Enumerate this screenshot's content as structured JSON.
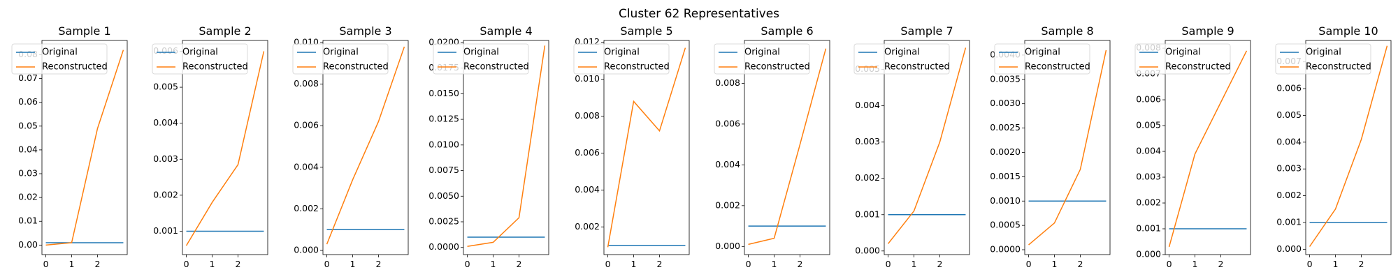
{
  "figure": {
    "title": "Cluster 62 Representatives"
  },
  "colors": {
    "original": "#1f77b4",
    "reconstructed": "#ff7f0e"
  },
  "chart_data": [
    {
      "type": "line",
      "title": "Sample 1",
      "x": [
        0,
        1,
        2,
        3
      ],
      "xticks": [
        "0",
        "1",
        "2"
      ],
      "ylim": [
        -0.004,
        0.086
      ],
      "yticks": [
        "0.00",
        "0.01",
        "0.02",
        "0.03",
        "0.04",
        "0.05",
        "0.06",
        "0.07",
        "0.08"
      ],
      "ytick_values": [
        0,
        0.01,
        0.02,
        0.03,
        0.04,
        0.05,
        0.06,
        0.07,
        0.08
      ],
      "series": [
        {
          "name": "Original",
          "values": [
            0.001,
            0.001,
            0.001,
            0.001
          ]
        },
        {
          "name": "Reconstructed",
          "values": [
            0.0,
            0.001,
            0.049,
            0.082
          ]
        }
      ],
      "legend": "upper left"
    },
    {
      "type": "line",
      "title": "Sample 2",
      "x": [
        0,
        1,
        2,
        3
      ],
      "xticks": [
        "0",
        "1",
        "2"
      ],
      "ylim": [
        0.00035,
        0.0063
      ],
      "yticks": [
        "0.001",
        "0.002",
        "0.003",
        "0.004",
        "0.005",
        "0.006"
      ],
      "ytick_values": [
        0.001,
        0.002,
        0.003,
        0.004,
        0.005,
        0.006
      ],
      "series": [
        {
          "name": "Original",
          "values": [
            0.001,
            0.001,
            0.001,
            0.001
          ]
        },
        {
          "name": "Reconstructed",
          "values": [
            0.0006,
            0.0018,
            0.00285,
            0.006
          ]
        }
      ],
      "legend": "upper left"
    },
    {
      "type": "line",
      "title": "Sample 3",
      "x": [
        0,
        1,
        2,
        3
      ],
      "xticks": [
        "0",
        "1",
        "2"
      ],
      "ylim": [
        -0.0002,
        0.0101
      ],
      "yticks": [
        "0.000",
        "0.002",
        "0.004",
        "0.006",
        "0.008",
        "0.010"
      ],
      "ytick_values": [
        0,
        0.002,
        0.004,
        0.006,
        0.008,
        0.01
      ],
      "series": [
        {
          "name": "Original",
          "values": [
            0.001,
            0.001,
            0.001,
            0.001
          ]
        },
        {
          "name": "Reconstructed",
          "values": [
            0.0003,
            0.0034,
            0.0062,
            0.0098
          ]
        }
      ],
      "legend": "upper left"
    },
    {
      "type": "line",
      "title": "Sample 4",
      "x": [
        0,
        1,
        2,
        3
      ],
      "xticks": [
        "0",
        "1",
        "2"
      ],
      "ylim": [
        -0.0007,
        0.0202
      ],
      "yticks": [
        "0.0000",
        "0.0025",
        "0.0050",
        "0.0075",
        "0.0100",
        "0.0125",
        "0.0150",
        "0.0175",
        "0.0200"
      ],
      "ytick_values": [
        0,
        0.0025,
        0.005,
        0.0075,
        0.01,
        0.0125,
        0.015,
        0.0175,
        0.02
      ],
      "series": [
        {
          "name": "Original",
          "values": [
            0.001,
            0.001,
            0.001,
            0.001
          ]
        },
        {
          "name": "Reconstructed",
          "values": [
            0.0001,
            0.0005,
            0.0029,
            0.0197
          ]
        }
      ],
      "legend": "upper left"
    },
    {
      "type": "line",
      "title": "Sample 5",
      "x": [
        0,
        1,
        2,
        3
      ],
      "xticks": [
        "0",
        "1",
        "2"
      ],
      "ylim": [
        0.0005,
        0.0121
      ],
      "yticks": [
        "0.002",
        "0.004",
        "0.006",
        "0.008",
        "0.010",
        "0.012"
      ],
      "ytick_values": [
        0.002,
        0.004,
        0.006,
        0.008,
        0.01,
        0.012
      ],
      "series": [
        {
          "name": "Original",
          "values": [
            0.001,
            0.001,
            0.001,
            0.001
          ]
        },
        {
          "name": "Reconstructed",
          "values": [
            0.0009,
            0.0088,
            0.0072,
            0.0117
          ]
        }
      ],
      "legend": "upper left"
    },
    {
      "type": "line",
      "title": "Sample 6",
      "x": [
        0,
        1,
        2,
        3
      ],
      "xticks": [
        "0",
        "1",
        "2"
      ],
      "ylim": [
        -0.0004,
        0.0101
      ],
      "yticks": [
        "0.000",
        "0.002",
        "0.004",
        "0.006",
        "0.008"
      ],
      "ytick_values": [
        0,
        0.002,
        0.004,
        0.006,
        0.008
      ],
      "series": [
        {
          "name": "Original",
          "values": [
            0.001,
            0.001,
            0.001,
            0.001
          ]
        },
        {
          "name": "Reconstructed",
          "values": [
            0.0001,
            0.0004,
            0.005,
            0.0097
          ]
        }
      ],
      "legend": "upper left"
    },
    {
      "type": "line",
      "title": "Sample 7",
      "x": [
        0,
        1,
        2,
        3
      ],
      "xticks": [
        "0",
        "1",
        "2"
      ],
      "ylim": [
        -0.0001,
        0.0058
      ],
      "yticks": [
        "0.000",
        "0.001",
        "0.002",
        "0.003",
        "0.004",
        "0.005"
      ],
      "ytick_values": [
        0,
        0.001,
        0.002,
        0.003,
        0.004,
        0.005
      ],
      "series": [
        {
          "name": "Original",
          "values": [
            0.001,
            0.001,
            0.001,
            0.001
          ]
        },
        {
          "name": "Reconstructed",
          "values": [
            0.0002,
            0.0011,
            0.003,
            0.0056
          ]
        }
      ],
      "legend": "upper left"
    },
    {
      "type": "line",
      "title": "Sample 8",
      "x": [
        0,
        1,
        2,
        3
      ],
      "xticks": [
        "0",
        "1",
        "2"
      ],
      "ylim": [
        -0.0001,
        0.0043
      ],
      "yticks": [
        "0.0000",
        "0.0005",
        "0.0010",
        "0.0015",
        "0.0020",
        "0.0025",
        "0.0030",
        "0.0035",
        "0.0040"
      ],
      "ytick_values": [
        0,
        0.0005,
        0.001,
        0.0015,
        0.002,
        0.0025,
        0.003,
        0.0035,
        0.004
      ],
      "series": [
        {
          "name": "Original",
          "values": [
            0.001,
            0.001,
            0.001,
            0.001
          ]
        },
        {
          "name": "Reconstructed",
          "values": [
            0.0001,
            0.00055,
            0.00165,
            0.0041
          ]
        }
      ],
      "legend": "upper left"
    },
    {
      "type": "line",
      "title": "Sample 9",
      "x": [
        0,
        1,
        2,
        3
      ],
      "xticks": [
        "0",
        "1",
        "2"
      ],
      "ylim": [
        0.0,
        0.0083
      ],
      "yticks": [
        "0.000",
        "0.001",
        "0.002",
        "0.003",
        "0.004",
        "0.005",
        "0.006",
        "0.007",
        "0.008"
      ],
      "ytick_values": [
        0,
        0.001,
        0.002,
        0.003,
        0.004,
        0.005,
        0.006,
        0.007,
        0.008
      ],
      "series": [
        {
          "name": "Original",
          "values": [
            0.001,
            0.001,
            0.001,
            0.001
          ]
        },
        {
          "name": "Reconstructed",
          "values": [
            0.0003,
            0.0039,
            0.0059,
            0.0079
          ]
        }
      ],
      "legend": "upper left"
    },
    {
      "type": "line",
      "title": "Sample 10",
      "x": [
        0,
        1,
        2,
        3
      ],
      "xticks": [
        "0",
        "1",
        "2"
      ],
      "ylim": [
        -0.0002,
        0.0078
      ],
      "yticks": [
        "0.000",
        "0.001",
        "0.002",
        "0.003",
        "0.004",
        "0.005",
        "0.006",
        "0.007"
      ],
      "ytick_values": [
        0,
        0.001,
        0.002,
        0.003,
        0.004,
        0.005,
        0.006,
        0.007
      ],
      "series": [
        {
          "name": "Original",
          "values": [
            0.001,
            0.001,
            0.001,
            0.001
          ]
        },
        {
          "name": "Reconstructed",
          "values": [
            0.0001,
            0.0015,
            0.0041,
            0.0076
          ]
        }
      ],
      "legend": "upper left"
    }
  ]
}
